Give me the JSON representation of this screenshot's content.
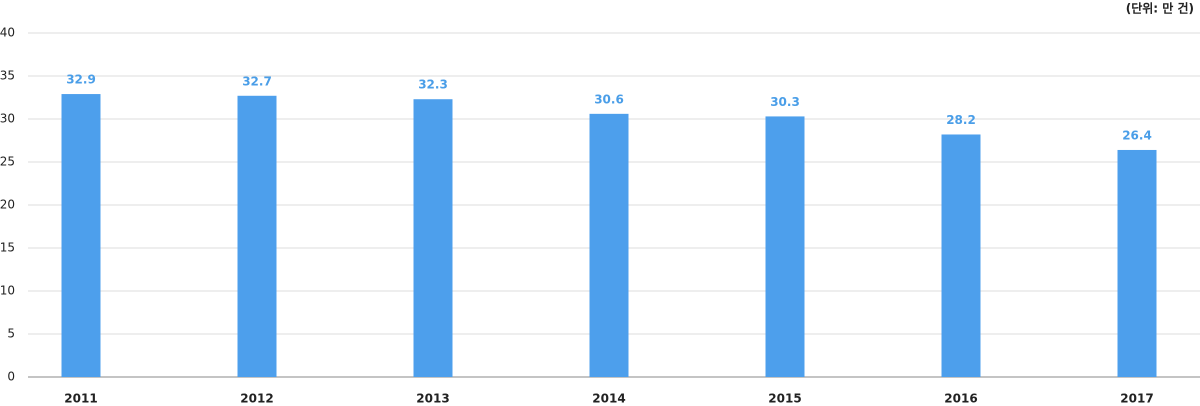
{
  "chart_data": {
    "type": "bar",
    "unit_label": "(단위: 만 건)",
    "categories": [
      "2011",
      "2012",
      "2013",
      "2014",
      "2015",
      "2016",
      "2017"
    ],
    "values": [
      32.9,
      32.7,
      32.3,
      30.6,
      30.3,
      28.2,
      26.4
    ],
    "color": "#4d9fec",
    "label_color": "#4a9ee8",
    "ylim": [
      0,
      40
    ],
    "yticks": [
      0,
      5,
      10,
      15,
      20,
      25,
      30,
      35,
      40
    ],
    "grid": true
  }
}
